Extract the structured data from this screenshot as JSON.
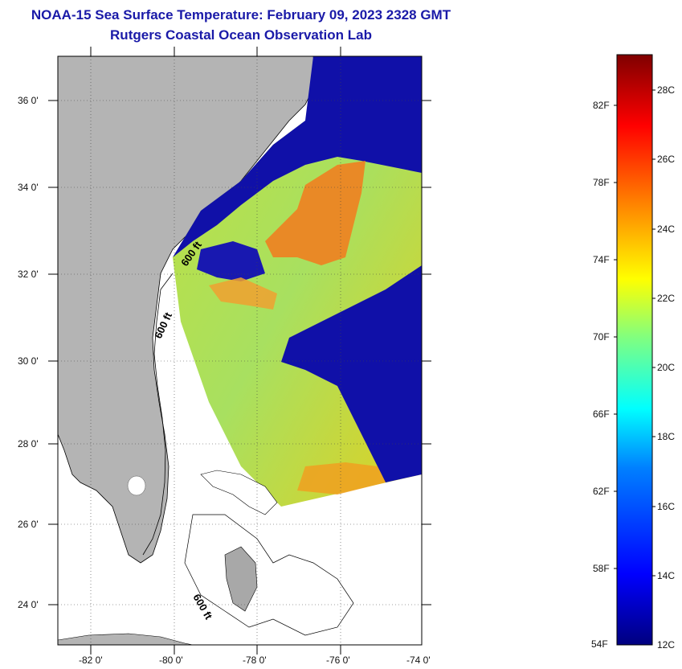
{
  "title": "NOAA-15 Sea Surface Temperature:  February 09, 2023 2328 GMT",
  "subtitle": "Rutgers Coastal Ocean Observation Lab",
  "axes": {
    "lat_labels": [
      "36 0'",
      "34 0'",
      "32 0'",
      "30 0'",
      "28 0'",
      "26 0'",
      "24 0'"
    ],
    "lon_labels": [
      "-82 0'",
      "-80 0'",
      "-78 0'",
      "-76 0'",
      "-74 0'"
    ]
  },
  "contour_labels": [
    "600 ft",
    "600 ft",
    "600 ft"
  ],
  "colorbar": {
    "fahrenheit_labels": [
      "82F",
      "78F",
      "74F",
      "70F",
      "66F",
      "62F",
      "58F",
      "54F"
    ],
    "celsius_labels": [
      "28C",
      "26C",
      "24C",
      "22C",
      "20C",
      "18C",
      "16C",
      "14C",
      "12C"
    ],
    "range_c": [
      12,
      29
    ]
  },
  "colors": {
    "title": "#1a1aa8",
    "land": "#b4b4b4",
    "cold": "#1010a8",
    "warm": "#f08020"
  }
}
